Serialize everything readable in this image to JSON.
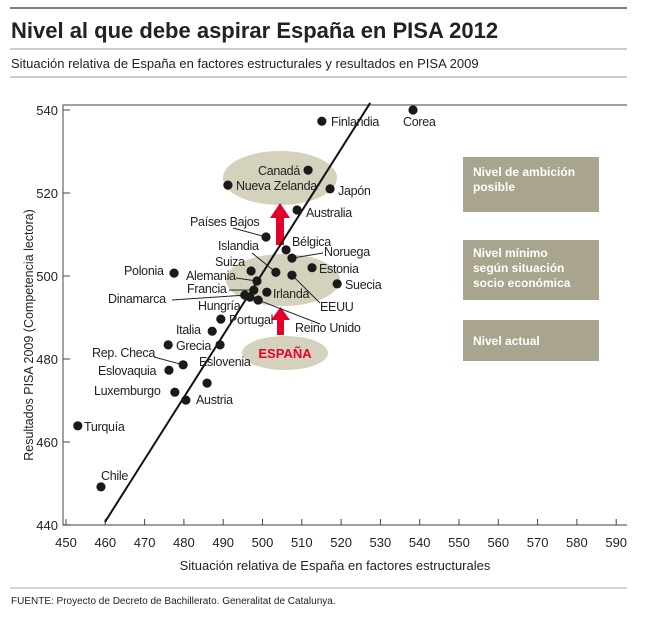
{
  "chart_data": {
    "type": "scatter",
    "title": "Nivel al que debe aspirar España en PISA 2012",
    "subtitle": "Situación relativa de España en factores estructurales y resultados en PISA 2009",
    "xlabel": "Situación relativa de España en factores estructurales",
    "ylabel": "Resultados PISA 2009 (Competencia lectora)",
    "xlim": [
      450,
      590
    ],
    "ylim": [
      440,
      540
    ],
    "xticks": [
      450,
      460,
      470,
      480,
      490,
      500,
      510,
      520,
      530,
      540,
      550,
      560,
      570,
      580,
      590
    ],
    "yticks": [
      440,
      460,
      480,
      500,
      520,
      540
    ],
    "trendline": [
      [
        459.9,
        440.7
      ],
      [
        527.4,
        541.7
      ]
    ],
    "points": [
      {
        "name": "Finlandia",
        "x": 515.1,
        "y": 537.3
      },
      {
        "name": "Corea",
        "x": 538.3,
        "y": 540.0
      },
      {
        "name": "Canadá",
        "x": 511.6,
        "y": 525.5
      },
      {
        "name": "Nueva Zelanda",
        "x": 491.2,
        "y": 521.9
      },
      {
        "name": "Japón",
        "x": 517.2,
        "y": 521.0
      },
      {
        "name": "Australia",
        "x": 508.8,
        "y": 515.9
      },
      {
        "name": "Países Bajos",
        "x": 500.9,
        "y": 509.4
      },
      {
        "name": "Bélgica",
        "x": 506.0,
        "y": 506.3
      },
      {
        "name": "Noruega",
        "x": 507.5,
        "y": 504.3
      },
      {
        "name": "Islandia",
        "x": 503.4,
        "y": 500.9
      },
      {
        "name": "Suiza",
        "x": 497.1,
        "y": 501.2
      },
      {
        "name": "Polonia",
        "x": 477.5,
        "y": 500.7
      },
      {
        "name": "Estonia",
        "x": 512.6,
        "y": 502.0
      },
      {
        "name": "Suecia",
        "x": 519.0,
        "y": 498.1
      },
      {
        "name": "EEUU",
        "x": 507.5,
        "y": 500.2
      },
      {
        "name": "Alemania",
        "x": 498.6,
        "y": 498.8
      },
      {
        "name": "Francia",
        "x": 497.8,
        "y": 496.6
      },
      {
        "name": "Irlanda",
        "x": 501.1,
        "y": 496.1
      },
      {
        "name": "Dinamarca",
        "x": 495.5,
        "y": 495.4
      },
      {
        "name": "Hungría",
        "x": 496.8,
        "y": 494.9
      },
      {
        "name": "Reino Unido",
        "x": 498.9,
        "y": 494.2
      },
      {
        "name": "Portugal",
        "x": 489.4,
        "y": 489.6
      },
      {
        "name": "Italia",
        "x": 487.2,
        "y": 486.7
      },
      {
        "name": "Grecia",
        "x": 476.0,
        "y": 483.4
      },
      {
        "name": "Eslovenia",
        "x": 489.2,
        "y": 483.4
      },
      {
        "name": "Rep. Checa",
        "x": 479.8,
        "y": 478.6
      },
      {
        "name": "Eslovaquia",
        "x": 476.2,
        "y": 477.3
      },
      {
        "name": "Luxemburgo",
        "x": 477.7,
        "y": 472.0
      },
      {
        "name": "",
        "x": 485.9,
        "y": 474.2
      },
      {
        "name": "Austria",
        "x": 480.5,
        "y": 470.1
      },
      {
        "name": "Turquía",
        "x": 453.0,
        "y": 463.9
      },
      {
        "name": "Chile",
        "x": 458.9,
        "y": 449.2
      }
    ],
    "spain_label": "ESPAÑA",
    "legend": [
      "Nivel de ambición posible",
      "Nivel mínimo según situación socio económica",
      "Nivel actual"
    ],
    "source": "FUENTE: Proyecto de Decreto de Bachillerato. Generalitat de Catalunya."
  },
  "colors": {
    "accent": "#e4002b",
    "olive": "#a8a48e",
    "ellipse": "#d4d2bd"
  }
}
